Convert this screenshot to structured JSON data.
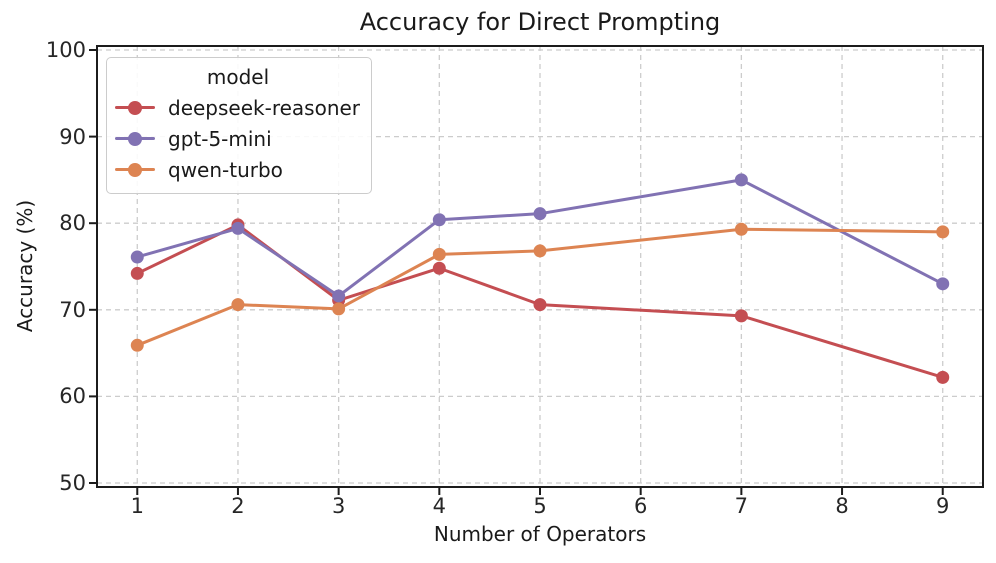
{
  "chart_data": {
    "type": "line",
    "title": "Accuracy for Direct Prompting",
    "xlabel": "Number of Operators",
    "ylabel": "Accuracy (%)",
    "x": [
      1,
      2,
      3,
      4,
      5,
      7,
      9
    ],
    "series": [
      {
        "name": "deepseek-reasoner",
        "color": "#c44e52",
        "values": [
          74.2,
          79.8,
          71.1,
          74.8,
          70.6,
          69.3,
          62.2
        ]
      },
      {
        "name": "gpt-5-mini",
        "color": "#8172b3",
        "values": [
          76.1,
          79.4,
          71.6,
          80.4,
          81.1,
          85.0,
          73.0
        ]
      },
      {
        "name": "qwen-turbo",
        "color": "#dd8452",
        "values": [
          65.9,
          70.6,
          70.1,
          76.4,
          76.8,
          79.3,
          79.0
        ]
      }
    ],
    "legend": {
      "title": "model",
      "position": "upper left"
    },
    "xticks": [
      1,
      2,
      3,
      4,
      5,
      6,
      7,
      8,
      9
    ],
    "yticks": [
      50,
      60,
      70,
      80,
      90,
      100
    ],
    "xlim": [
      0.6,
      9.4
    ],
    "ylim": [
      50,
      100
    ],
    "grid": {
      "visible": true,
      "style": "dashed",
      "color": "#cccccc"
    },
    "spine_color": "#1c1c1c",
    "background": "#ffffff"
  }
}
